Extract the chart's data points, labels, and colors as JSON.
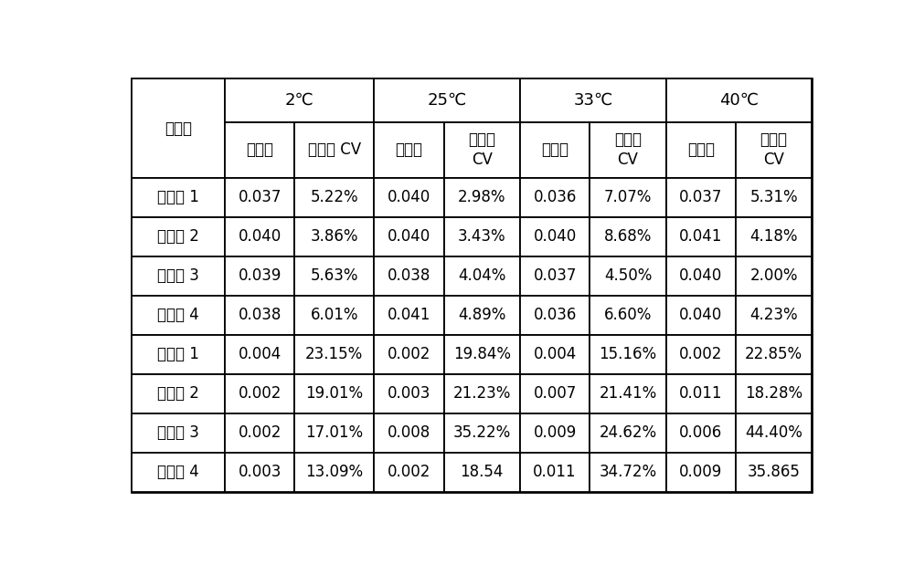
{
  "temp_headers": [
    "2℃",
    "25℃",
    "33℃",
    "40℃"
  ],
  "sub_header_col1": "平均值",
  "sub_header_col2_2C": "重复性 CV",
  "sub_header_col2_other": "重复性\nCV",
  "row_header": "试验组",
  "rows": [
    [
      "实施例 1",
      "0.037",
      "5.22%",
      "0.040",
      "2.98%",
      "0.036",
      "7.07%",
      "0.037",
      "5.31%"
    ],
    [
      "实施例 2",
      "0.040",
      "3.86%",
      "0.040",
      "3.43%",
      "0.040",
      "8.68%",
      "0.041",
      "4.18%"
    ],
    [
      "实施例 3",
      "0.039",
      "5.63%",
      "0.038",
      "4.04%",
      "0.037",
      "4.50%",
      "0.040",
      "2.00%"
    ],
    [
      "实施例 4",
      "0.038",
      "6.01%",
      "0.041",
      "4.89%",
      "0.036",
      "6.60%",
      "0.040",
      "4.23%"
    ],
    [
      "对比例 1",
      "0.004",
      "23.15%",
      "0.002",
      "19.84%",
      "0.004",
      "15.16%",
      "0.002",
      "22.85%"
    ],
    [
      "对比例 2",
      "0.002",
      "19.01%",
      "0.003",
      "21.23%",
      "0.007",
      "21.41%",
      "0.011",
      "18.28%"
    ],
    [
      "对比例 3",
      "0.002",
      "17.01%",
      "0.008",
      "35.22%",
      "0.009",
      "24.62%",
      "0.006",
      "44.40%"
    ],
    [
      "对比例 4",
      "0.003",
      "13.09%",
      "0.002",
      "18.54",
      "0.011",
      "34.72%",
      "0.009",
      "35.865"
    ]
  ],
  "background_color": "#ffffff",
  "line_color": "#000000",
  "text_color": "#000000",
  "font_size": 12.0,
  "header_font_size": 13.0
}
